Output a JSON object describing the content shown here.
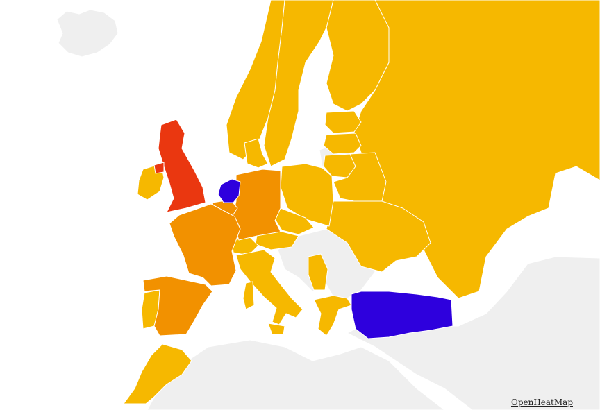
{
  "attribution": {
    "label": "OpenHeatMap"
  },
  "colors": {
    "sea": "#ffffff",
    "no_data": "#efefef",
    "border": "#ffffff",
    "low": "#f6b800",
    "medium": "#f29100",
    "high": "#ea3710",
    "highest": "#2e00dd"
  },
  "regions": [
    {
      "name": "iceland",
      "level": "no_data"
    },
    {
      "name": "norway",
      "level": "low"
    },
    {
      "name": "sweden",
      "level": "low"
    },
    {
      "name": "finland",
      "level": "low"
    },
    {
      "name": "russia",
      "level": "low"
    },
    {
      "name": "estonia",
      "level": "low"
    },
    {
      "name": "latvia",
      "level": "low"
    },
    {
      "name": "lithuania",
      "level": "low"
    },
    {
      "name": "belarus",
      "level": "low"
    },
    {
      "name": "ukraine",
      "level": "low"
    },
    {
      "name": "poland",
      "level": "low"
    },
    {
      "name": "denmark",
      "level": "low"
    },
    {
      "name": "ireland",
      "level": "low"
    },
    {
      "name": "united-kingdom",
      "level": "high"
    },
    {
      "name": "netherlands",
      "level": "highest"
    },
    {
      "name": "belgium",
      "level": "medium"
    },
    {
      "name": "germany",
      "level": "medium"
    },
    {
      "name": "france",
      "level": "medium"
    },
    {
      "name": "spain",
      "level": "medium"
    },
    {
      "name": "portugal",
      "level": "low"
    },
    {
      "name": "switzerland",
      "level": "low"
    },
    {
      "name": "austria",
      "level": "low"
    },
    {
      "name": "czech-republic",
      "level": "low"
    },
    {
      "name": "italy",
      "level": "low"
    },
    {
      "name": "greece",
      "level": "low"
    },
    {
      "name": "serbia",
      "level": "low"
    },
    {
      "name": "morocco",
      "level": "low"
    },
    {
      "name": "turkey",
      "level": "highest"
    },
    {
      "name": "balkans",
      "level": "no_data"
    },
    {
      "name": "north-africa",
      "level": "no_data"
    },
    {
      "name": "middle-east",
      "level": "no_data"
    },
    {
      "name": "kaliningrad",
      "level": "no_data"
    }
  ]
}
